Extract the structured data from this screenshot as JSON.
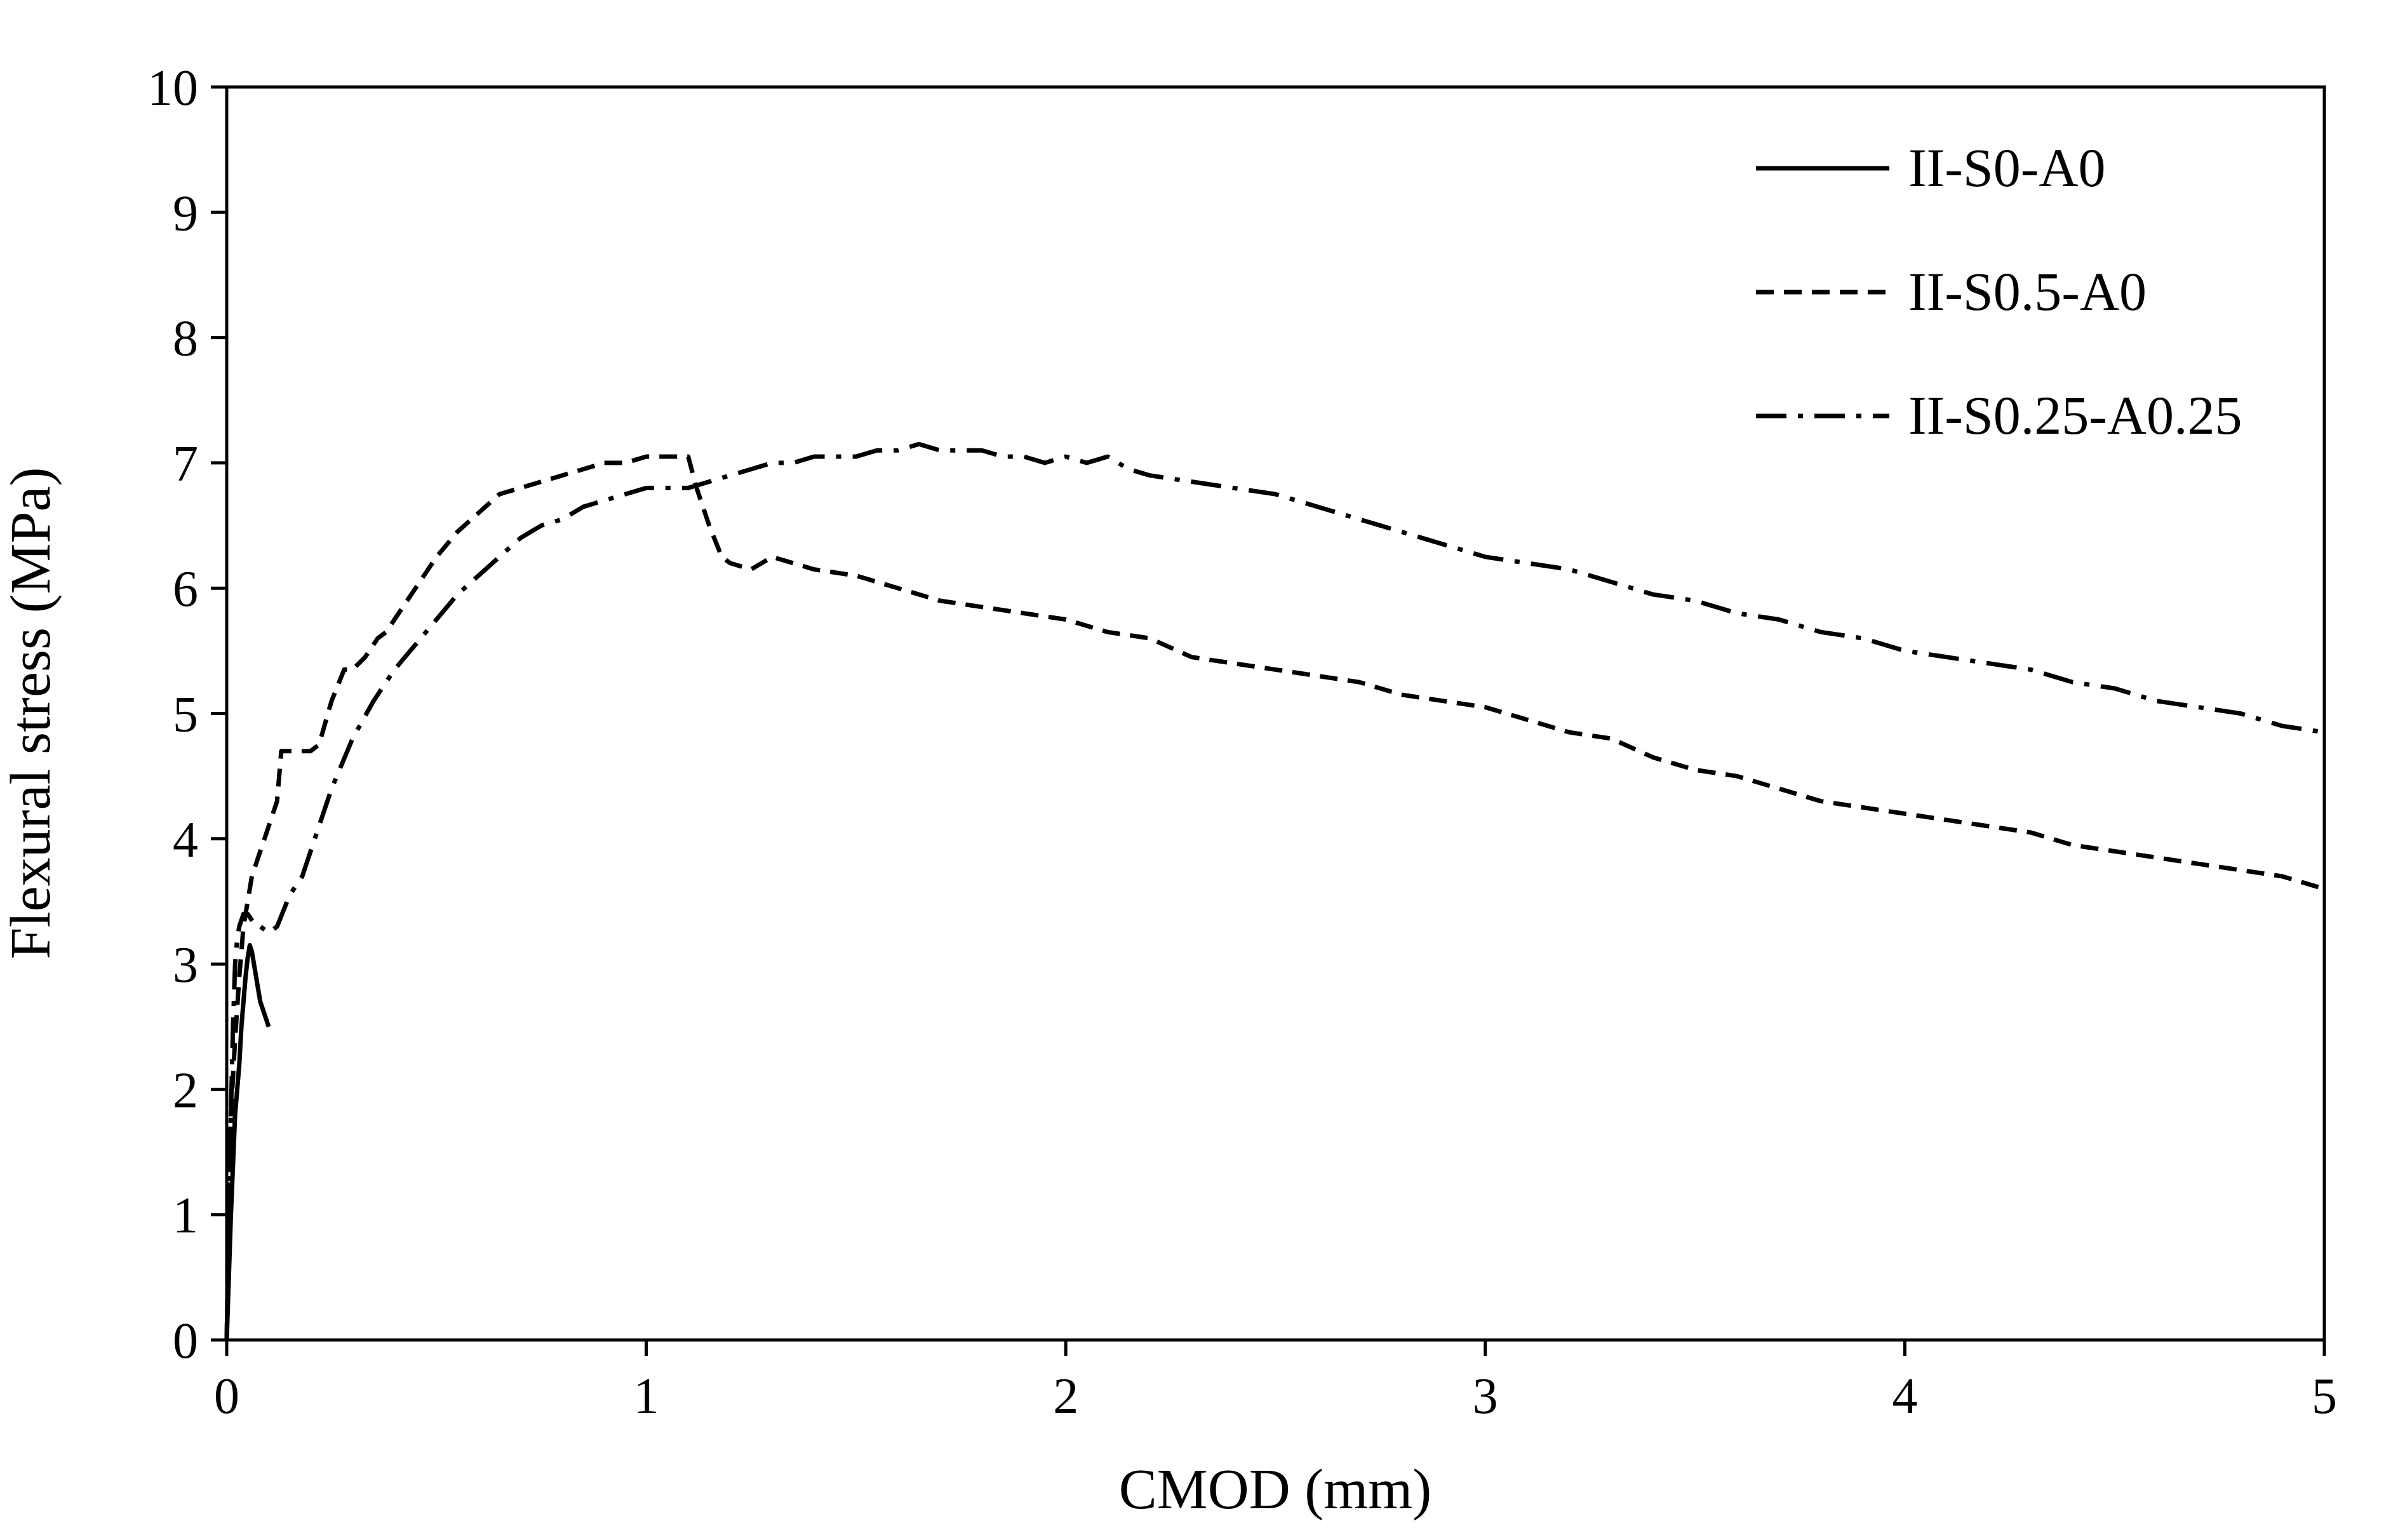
{
  "chart_data": {
    "type": "line",
    "title": "",
    "xlabel": "CMOD (mm)",
    "ylabel": "Flexural stress (MPa)",
    "xlim": [
      0,
      5
    ],
    "ylim": [
      0,
      10
    ],
    "xticks": [
      "0",
      "1",
      "2",
      "3",
      "4",
      "5"
    ],
    "yticks": [
      "0",
      "1",
      "2",
      "3",
      "4",
      "5",
      "6",
      "7",
      "8",
      "9",
      "10"
    ],
    "grid": false,
    "legend_position": "top-right",
    "series": [
      {
        "name": "II-S0-A0",
        "dash": "solid",
        "color": "#000000",
        "x": [
          0,
          0.005,
          0.01,
          0.015,
          0.02,
          0.025,
          0.03,
          0.035,
          0.04,
          0.045,
          0.05,
          0.055,
          0.06,
          0.065,
          0.07,
          0.075,
          0.08,
          0.09,
          0.1
        ],
        "y": [
          0,
          0.5,
          1.0,
          1.4,
          1.8,
          2.0,
          2.2,
          2.5,
          2.7,
          2.9,
          3.05,
          3.15,
          3.1,
          3.0,
          2.9,
          2.8,
          2.7,
          2.6,
          2.5
        ]
      },
      {
        "name": "II-S0.5-A0",
        "dash": "dashed",
        "color": "#000000",
        "x": [
          0,
          0.005,
          0.01,
          0.02,
          0.03,
          0.04,
          0.05,
          0.06,
          0.08,
          0.1,
          0.12,
          0.13,
          0.15,
          0.18,
          0.2,
          0.22,
          0.25,
          0.28,
          0.3,
          0.33,
          0.36,
          0.38,
          0.4,
          0.45,
          0.5,
          0.55,
          0.6,
          0.65,
          0.7,
          0.75,
          0.8,
          0.85,
          0.9,
          0.95,
          1.0,
          1.05,
          1.1,
          1.12,
          1.15,
          1.18,
          1.2,
          1.25,
          1.3,
          1.35,
          1.4,
          1.5,
          1.6,
          1.7,
          1.8,
          1.9,
          2.0,
          2.1,
          2.2,
          2.3,
          2.4,
          2.5,
          2.6,
          2.7,
          2.8,
          2.9,
          3.0,
          3.1,
          3.2,
          3.3,
          3.4,
          3.5,
          3.6,
          3.7,
          3.8,
          3.9,
          4.0,
          4.1,
          4.2,
          4.3,
          4.4,
          4.5,
          4.6,
          4.7,
          4.8,
          4.9,
          5.0
        ],
        "y": [
          0,
          1.2,
          1.8,
          2.4,
          2.9,
          3.3,
          3.5,
          3.7,
          3.9,
          4.1,
          4.3,
          4.7,
          4.7,
          4.7,
          4.7,
          4.75,
          5.1,
          5.35,
          5.35,
          5.45,
          5.6,
          5.65,
          5.75,
          6.0,
          6.25,
          6.45,
          6.6,
          6.75,
          6.8,
          6.85,
          6.9,
          6.95,
          7.0,
          7.0,
          7.05,
          7.05,
          7.05,
          6.8,
          6.5,
          6.25,
          6.2,
          6.15,
          6.25,
          6.2,
          6.15,
          6.1,
          6.0,
          5.9,
          5.85,
          5.8,
          5.75,
          5.65,
          5.6,
          5.45,
          5.4,
          5.35,
          5.3,
          5.25,
          5.15,
          5.1,
          5.05,
          4.95,
          4.85,
          4.8,
          4.65,
          4.55,
          4.5,
          4.4,
          4.3,
          4.25,
          4.2,
          4.15,
          4.1,
          4.05,
          3.95,
          3.9,
          3.85,
          3.8,
          3.75,
          3.7,
          3.6
        ]
      },
      {
        "name": "II-S0.25-A0.25",
        "dash": "dashdot",
        "color": "#000000",
        "x": [
          0,
          0.005,
          0.01,
          0.015,
          0.02,
          0.025,
          0.03,
          0.04,
          0.05,
          0.06,
          0.07,
          0.08,
          0.1,
          0.12,
          0.15,
          0.18,
          0.2,
          0.25,
          0.3,
          0.35,
          0.4,
          0.45,
          0.5,
          0.55,
          0.6,
          0.65,
          0.7,
          0.75,
          0.8,
          0.85,
          0.9,
          0.95,
          1.0,
          1.05,
          1.1,
          1.15,
          1.2,
          1.25,
          1.3,
          1.35,
          1.4,
          1.45,
          1.5,
          1.55,
          1.6,
          1.65,
          1.7,
          1.75,
          1.8,
          1.85,
          1.9,
          1.95,
          2.0,
          2.05,
          2.1,
          2.15,
          2.2,
          2.3,
          2.4,
          2.5,
          2.6,
          2.7,
          2.8,
          2.9,
          3.0,
          3.1,
          3.2,
          3.3,
          3.4,
          3.5,
          3.6,
          3.7,
          3.8,
          3.9,
          4.0,
          4.1,
          4.2,
          4.3,
          4.4,
          4.5,
          4.6,
          4.7,
          4.8,
          4.9,
          5.0
        ],
        "y": [
          0,
          1.0,
          1.8,
          2.5,
          3.0,
          3.2,
          3.3,
          3.4,
          3.4,
          3.35,
          3.3,
          3.3,
          3.25,
          3.3,
          3.55,
          3.7,
          3.9,
          4.4,
          4.8,
          5.1,
          5.35,
          5.55,
          5.75,
          5.95,
          6.1,
          6.25,
          6.4,
          6.5,
          6.55,
          6.65,
          6.7,
          6.75,
          6.8,
          6.8,
          6.8,
          6.85,
          6.9,
          6.95,
          7.0,
          7.0,
          7.05,
          7.05,
          7.05,
          7.1,
          7.1,
          7.15,
          7.1,
          7.1,
          7.1,
          7.05,
          7.05,
          7.0,
          7.05,
          7.0,
          7.05,
          6.95,
          6.9,
          6.85,
          6.8,
          6.75,
          6.65,
          6.55,
          6.45,
          6.35,
          6.25,
          6.2,
          6.15,
          6.05,
          5.95,
          5.9,
          5.8,
          5.75,
          5.65,
          5.6,
          5.5,
          5.45,
          5.4,
          5.35,
          5.25,
          5.2,
          5.1,
          5.05,
          5.0,
          4.9,
          4.85
        ]
      }
    ]
  }
}
